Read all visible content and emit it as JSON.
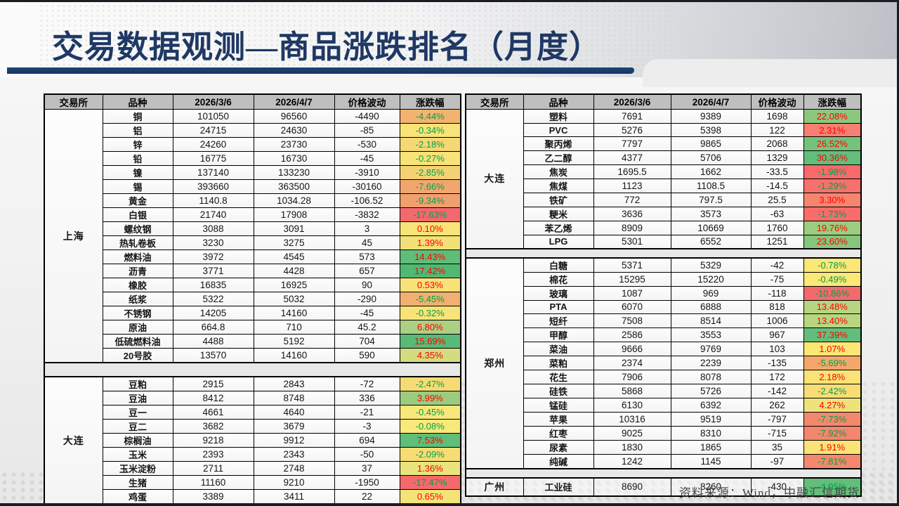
{
  "title": "交易数据观测—商品涨跌排名（月度）",
  "source_note": "资料来源：Wind，中融汇信期货",
  "colors": {
    "title_navy": "#1F3864",
    "bar_navy": "#16365D",
    "header_gray": "#BFBFBF",
    "positive_text": "#FE0000",
    "negative_text": "#00A14B",
    "heat_min_red": "#F8696B",
    "heat_mid_yellow": "#FFEB84",
    "heat_max_green": "#63BE7B"
  },
  "columns": [
    "交易所",
    "品种",
    "2026/3/6",
    "2026/4/7",
    "价格波动",
    "涨跌幅"
  ],
  "tables": [
    {
      "id": "left",
      "groups": [
        {
          "exchange": "上海",
          "rows": [
            {
              "name": "铜",
              "p1": "101050",
              "p2": "96560",
              "chg": "-4490",
              "pct": "-4.44%",
              "bg": "#F2B371"
            },
            {
              "name": "铝",
              "p1": "24715",
              "p2": "24630",
              "chg": "-85",
              "pct": "-0.34%",
              "bg": "#F7E377"
            },
            {
              "name": "锌",
              "p1": "24260",
              "p2": "23730",
              "chg": "-530",
              "pct": "-2.18%",
              "bg": "#F5D774"
            },
            {
              "name": "铅",
              "p1": "16775",
              "p2": "16730",
              "chg": "-45",
              "pct": "-0.27%",
              "bg": "#F7E377"
            },
            {
              "name": "镍",
              "p1": "137140",
              "p2": "133230",
              "chg": "-3910",
              "pct": "-2.85%",
              "bg": "#F4D273"
            },
            {
              "name": "锡",
              "p1": "393660",
              "p2": "363500",
              "chg": "-30160",
              "pct": "-7.66%",
              "bg": "#F0A76E"
            },
            {
              "name": "黄金",
              "p1": "1140.8",
              "p2": "1034.28",
              "chg": "-106.52",
              "pct": "-9.34%",
              "bg": "#EFA06E"
            },
            {
              "name": "白银",
              "p1": "21740",
              "p2": "17908",
              "chg": "-3832",
              "pct": "-17.63%",
              "bg": "#F2696E"
            },
            {
              "name": "螺纹钢",
              "p1": "3088",
              "p2": "3091",
              "chg": "3",
              "pct": "0.10%",
              "bg": "#F7E377"
            },
            {
              "name": "热轧卷板",
              "p1": "3230",
              "p2": "3275",
              "chg": "45",
              "pct": "1.39%",
              "bg": "#F3E076"
            },
            {
              "name": "燃料油",
              "p1": "3972",
              "p2": "4545",
              "chg": "573",
              "pct": "14.43%",
              "bg": "#5FBC79"
            },
            {
              "name": "沥青",
              "p1": "3771",
              "p2": "4428",
              "chg": "657",
              "pct": "17.42%",
              "bg": "#4FB873"
            },
            {
              "name": "橡胶",
              "p1": "16835",
              "p2": "16925",
              "chg": "90",
              "pct": "0.53%",
              "bg": "#F6E277"
            },
            {
              "name": "纸浆",
              "p1": "5322",
              "p2": "5032",
              "chg": "-290",
              "pct": "-5.45%",
              "bg": "#F1B06F"
            },
            {
              "name": "不锈钢",
              "p1": "14205",
              "p2": "14160",
              "chg": "-45",
              "pct": "-0.32%",
              "bg": "#F7E377"
            },
            {
              "name": "原油",
              "p1": "664.8",
              "p2": "710",
              "chg": "45.2",
              "pct": "6.80%",
              "bg": "#ABD083"
            },
            {
              "name": "低硫燃料油",
              "p1": "4488",
              "p2": "5192",
              "chg": "704",
              "pct": "15.69%",
              "bg": "#58BA76"
            },
            {
              "name": "20号胶",
              "p1": "13570",
              "p2": "14160",
              "chg": "590",
              "pct": "4.35%",
              "bg": "#D3DC7F"
            }
          ]
        },
        {
          "exchange": "大连",
          "rows": [
            {
              "name": "豆粕",
              "p1": "2915",
              "p2": "2843",
              "chg": "-72",
              "pct": "-2.47%",
              "bg": "#F6DB74"
            },
            {
              "name": "豆油",
              "p1": "8412",
              "p2": "8748",
              "chg": "336",
              "pct": "3.99%",
              "bg": "#9CCB80"
            },
            {
              "name": "豆一",
              "p1": "4661",
              "p2": "4640",
              "chg": "-21",
              "pct": "-0.45%",
              "bg": "#F9E77A"
            },
            {
              "name": "豆二",
              "p1": "3682",
              "p2": "3679",
              "chg": "-3",
              "pct": "-0.08%",
              "bg": "#F9E87A"
            },
            {
              "name": "棕榈油",
              "p1": "9218",
              "p2": "9912",
              "chg": "694",
              "pct": "7.53%",
              "bg": "#5FBE79"
            },
            {
              "name": "玉米",
              "p1": "2393",
              "p2": "2343",
              "chg": "-50",
              "pct": "-2.09%",
              "bg": "#F6DC74"
            },
            {
              "name": "玉米淀粉",
              "p1": "2711",
              "p2": "2748",
              "chg": "37",
              "pct": "1.36%",
              "bg": "#E9E47B"
            },
            {
              "name": "生猪",
              "p1": "11160",
              "p2": "9210",
              "chg": "-1950",
              "pct": "-17.47%",
              "bg": "#F4696C"
            },
            {
              "name": "鸡蛋",
              "p1": "3389",
              "p2": "3411",
              "chg": "22",
              "pct": "0.65%",
              "bg": "#F3E478"
            }
          ]
        }
      ]
    },
    {
      "id": "right",
      "groups": [
        {
          "exchange": "大连",
          "rows": [
            {
              "name": "塑料",
              "p1": "7691",
              "p2": "9389",
              "chg": "1698",
              "pct": "22.08%",
              "bg": "#8BC87E"
            },
            {
              "name": "PVC",
              "p1": "5276",
              "p2": "5398",
              "chg": "122",
              "pct": "2.31%",
              "bg": "#F57F70"
            },
            {
              "name": "聚丙烯",
              "p1": "7797",
              "p2": "9865",
              "chg": "2068",
              "pct": "26.52%",
              "bg": "#74C37A"
            },
            {
              "name": "乙二醇",
              "p1": "4377",
              "p2": "5706",
              "chg": "1329",
              "pct": "30.36%",
              "bg": "#63BE7B"
            },
            {
              "name": "焦炭",
              "p1": "1695.5",
              "p2": "1662",
              "chg": "-33.5",
              "pct": "-1.98%",
              "bg": "#F8696B"
            },
            {
              "name": "焦煤",
              "p1": "1123",
              "p2": "1108.5",
              "chg": "-14.5",
              "pct": "-1.29%",
              "bg": "#F8706C"
            },
            {
              "name": "铁矿",
              "p1": "772",
              "p2": "797.5",
              "chg": "25.5",
              "pct": "3.30%",
              "bg": "#F6856F"
            },
            {
              "name": "粳米",
              "p1": "3636",
              "p2": "3573",
              "chg": "-63",
              "pct": "-1.73%",
              "bg": "#F86C6B"
            },
            {
              "name": "苯乙烯",
              "p1": "8909",
              "p2": "10669",
              "chg": "1760",
              "pct": "19.76%",
              "bg": "#9CCD7E"
            },
            {
              "name": "LPG",
              "p1": "5301",
              "p2": "6552",
              "chg": "1251",
              "pct": "23.60%",
              "bg": "#84C67C"
            }
          ]
        },
        {
          "exchange": "郑州",
          "rows": [
            {
              "name": "白糖",
              "p1": "5371",
              "p2": "5329",
              "chg": "-42",
              "pct": "-0.78%",
              "bg": "#FBE776"
            },
            {
              "name": "棉花",
              "p1": "15295",
              "p2": "15220",
              "chg": "-75",
              "pct": "-0.49%",
              "bg": "#FBE877"
            },
            {
              "name": "玻璃",
              "p1": "1087",
              "p2": "969",
              "chg": "-118",
              "pct": "-10.86%",
              "bg": "#F4696C"
            },
            {
              "name": "PTA",
              "p1": "6070",
              "p2": "6888",
              "chg": "818",
              "pct": "13.48%",
              "bg": "#B7D580"
            },
            {
              "name": "短纤",
              "p1": "7508",
              "p2": "8514",
              "chg": "1006",
              "pct": "13.40%",
              "bg": "#B8D580"
            },
            {
              "name": "甲醇",
              "p1": "2586",
              "p2": "3553",
              "chg": "967",
              "pct": "37.39%",
              "bg": "#63BE7B"
            },
            {
              "name": "菜油",
              "p1": "9666",
              "p2": "9769",
              "chg": "103",
              "pct": "1.07%",
              "bg": "#FBE676"
            },
            {
              "name": "菜粕",
              "p1": "2374",
              "p2": "2239",
              "chg": "-135",
              "pct": "-5.69%",
              "bg": "#F5A76B"
            },
            {
              "name": "花生",
              "p1": "7906",
              "p2": "8078",
              "chg": "172",
              "pct": "2.18%",
              "bg": "#F9E276"
            },
            {
              "name": "硅铁",
              "p1": "5868",
              "p2": "5726",
              "chg": "-142",
              "pct": "-2.42%",
              "bg": "#F9DD74"
            },
            {
              "name": "锰硅",
              "p1": "6130",
              "p2": "6392",
              "chg": "262",
              "pct": "4.27%",
              "bg": "#EEE27B"
            },
            {
              "name": "苹果",
              "p1": "10316",
              "p2": "9519",
              "chg": "-797",
              "pct": "-7.73%",
              "bg": "#F4886D"
            },
            {
              "name": "红枣",
              "p1": "9025",
              "p2": "8310",
              "chg": "-715",
              "pct": "-7.92%",
              "bg": "#F4866D"
            },
            {
              "name": "尿素",
              "p1": "1830",
              "p2": "1865",
              "chg": "35",
              "pct": "1.91%",
              "bg": "#FAE376"
            },
            {
              "name": "纯碱",
              "p1": "1242",
              "p2": "1145",
              "chg": "-97",
              "pct": "-7.81%",
              "bg": "#F4876D"
            }
          ]
        },
        {
          "exchange": "广州",
          "rows": [
            {
              "name": "工业硅",
              "p1": "8690",
              "p2": "8260",
              "chg": "-430",
              "pct": "-4.95%",
              "bg": "#63BE7B"
            }
          ]
        }
      ]
    }
  ]
}
